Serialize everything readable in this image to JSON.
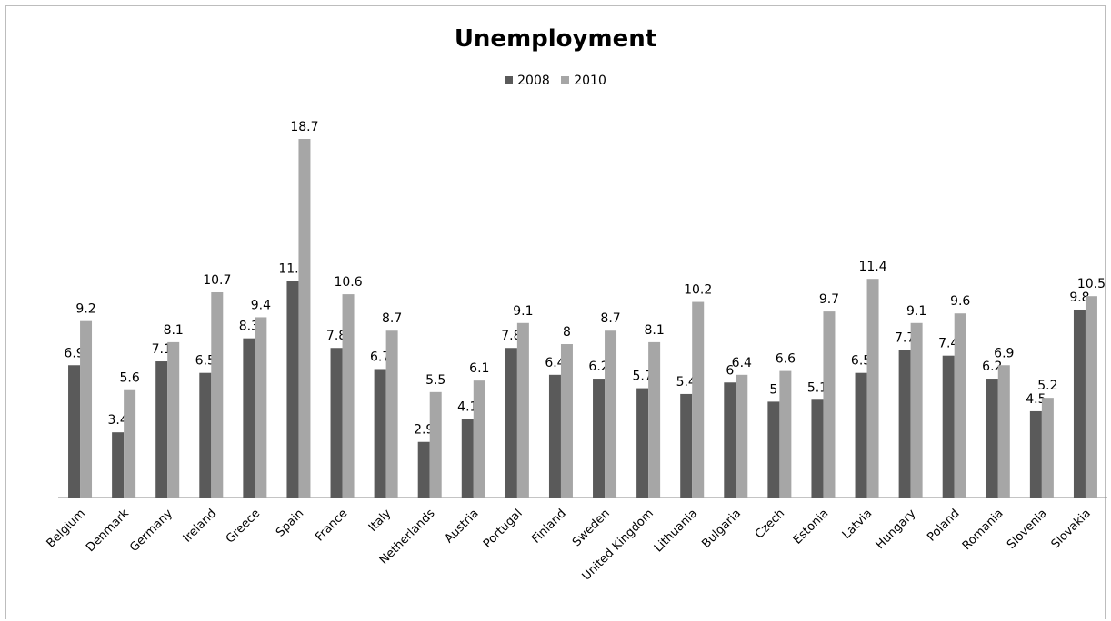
{
  "chart_data": {
    "type": "bar",
    "title": "Unemployment",
    "xlabel": "",
    "ylabel": "",
    "ylim": [
      0,
      20
    ],
    "grid": false,
    "legend_position": "top-center",
    "categories": [
      "Belgium",
      "Denmark",
      "Germany",
      "Ireland",
      "Greece",
      "Spain",
      "France",
      "Italy",
      "Netherlands",
      "Austria",
      "Portugal",
      "Finland",
      "Sweden",
      "United Kingdom",
      "Lithuania",
      "Bulgaria",
      "Czech",
      "Estonia",
      "Latvia",
      "Hungary",
      "Poland",
      "Romania",
      "Slovenia",
      "Slovakia"
    ],
    "series": [
      {
        "name": "2008",
        "color": "#5a5a5a",
        "values": [
          6.9,
          3.4,
          7.1,
          6.5,
          8.3,
          11.3,
          7.8,
          6.7,
          2.9,
          4.1,
          7.8,
          6.4,
          6.2,
          5.7,
          5.4,
          6,
          5,
          5.1,
          6.5,
          7.7,
          7.4,
          6.2,
          4.5,
          9.8
        ],
        "labels": [
          "6.9",
          "3.4",
          "7.1",
          "6.5",
          "8.3",
          "11.3",
          "7.8",
          "6.7",
          "2.9",
          "4.1",
          "7.8",
          "6.4",
          "6.2",
          "5.7",
          "5.4",
          "6",
          "5",
          "5.1",
          "6.5",
          "7.7",
          "7.4",
          "6.2",
          "4.5",
          "9.8"
        ]
      },
      {
        "name": "2010",
        "color": "#a6a6a6",
        "values": [
          9.2,
          5.6,
          8.1,
          10.7,
          9.4,
          18.7,
          10.6,
          8.7,
          5.5,
          6.1,
          9.1,
          8,
          8.7,
          8.1,
          10.2,
          6.4,
          6.6,
          9.7,
          11.4,
          9.1,
          9.6,
          6.9,
          5.2,
          10.5
        ],
        "labels": [
          "9.2",
          "5.6",
          "8.1",
          "10.7",
          "9.4",
          "18.7",
          "10.6",
          "8.7",
          "5.5",
          "6.1",
          "9.1",
          "8",
          "8.7",
          "8.1",
          "10.2",
          "6.4",
          "6.6",
          "9.7",
          "11.4",
          "9.1",
          "9.6",
          "6.9",
          "5.2",
          "10.5"
        ]
      }
    ]
  }
}
